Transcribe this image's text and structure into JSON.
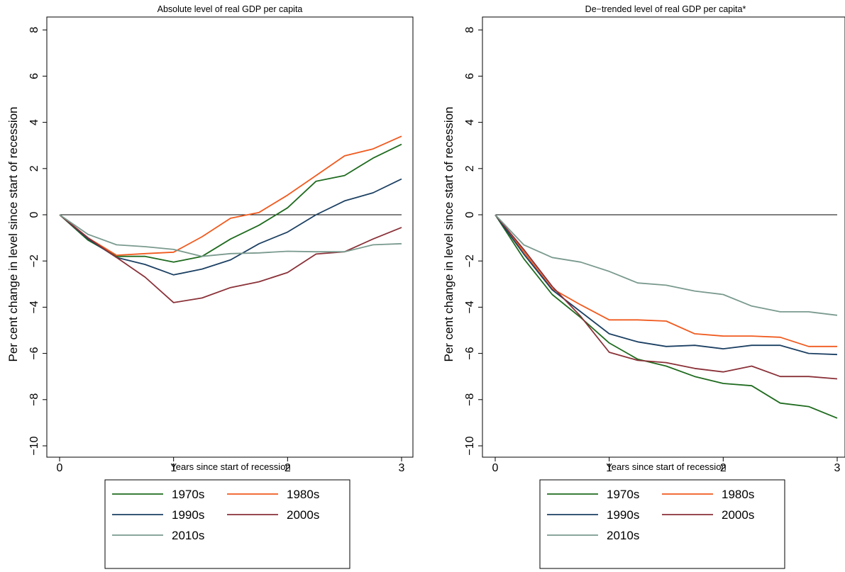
{
  "chart_data": [
    {
      "type": "line",
      "title": "Absolute level of real GDP per capita",
      "xlabel": "Years since start of recession",
      "ylabel": "Per cent change in level since start of recession",
      "x": [
        0,
        0.25,
        0.5,
        0.75,
        1,
        1.25,
        1.5,
        1.75,
        2,
        2.25,
        2.5,
        2.75,
        3
      ],
      "xlim": [
        0,
        3
      ],
      "ylim": [
        -10,
        8
      ],
      "xticks": [
        "0",
        "1",
        "2",
        "3"
      ],
      "yticks": [
        "−10",
        "−8",
        "−6",
        "−4",
        "−2",
        "0",
        "2",
        "4",
        "6",
        "8"
      ],
      "reference_line": 0,
      "grid": false,
      "legend": "below",
      "series": [
        {
          "name": "1970s",
          "color": "#1f6b1f",
          "values": [
            0,
            -1.1,
            -1.8,
            -1.8,
            -2.05,
            -1.8,
            -1.05,
            -0.45,
            0.3,
            1.45,
            1.7,
            2.45,
            3.05
          ]
        },
        {
          "name": "1980s",
          "color": "#f05a1e",
          "values": [
            0,
            -1.0,
            -1.75,
            -1.68,
            -1.62,
            -0.95,
            -0.15,
            0.1,
            0.85,
            1.7,
            2.55,
            2.85,
            3.4
          ]
        },
        {
          "name": "1990s",
          "color": "#1c4063",
          "values": [
            0,
            -1.05,
            -1.85,
            -2.15,
            -2.6,
            -2.35,
            -1.95,
            -1.25,
            -0.75,
            0.0,
            0.6,
            0.95,
            1.55
          ]
        },
        {
          "name": "2000s",
          "color": "#8a3138",
          "values": [
            0,
            -1.0,
            -1.85,
            -2.7,
            -3.8,
            -3.6,
            -3.15,
            -2.9,
            -2.5,
            -1.7,
            -1.6,
            -1.05,
            -0.55
          ]
        },
        {
          "name": "2010s",
          "color": "#7a9a8e",
          "values": [
            0,
            -0.85,
            -1.3,
            -1.38,
            -1.5,
            -1.8,
            -1.68,
            -1.65,
            -1.58,
            -1.6,
            -1.6,
            -1.3,
            -1.25
          ]
        }
      ]
    },
    {
      "type": "line",
      "title": "De−trended level of real GDP per capita*",
      "xlabel": "Years since start of recession",
      "ylabel": "Per cent change in level since start of recession",
      "x": [
        0,
        0.25,
        0.5,
        0.75,
        1,
        1.25,
        1.5,
        1.75,
        2,
        2.25,
        2.5,
        2.75,
        3
      ],
      "xlim": [
        0,
        3
      ],
      "ylim": [
        -10,
        8
      ],
      "xticks": [
        "0",
        "1",
        "2",
        "3"
      ],
      "yticks": [
        "−10",
        "−8",
        "−6",
        "−4",
        "−2",
        "0",
        "2",
        "4",
        "6",
        "8"
      ],
      "reference_line": 0,
      "grid": false,
      "legend": "below",
      "series": [
        {
          "name": "1970s",
          "color": "#1f6b1f",
          "values": [
            0,
            -1.9,
            -3.45,
            -4.45,
            -5.55,
            -6.25,
            -6.55,
            -7.0,
            -7.3,
            -7.4,
            -8.15,
            -8.3,
            -8.8
          ]
        },
        {
          "name": "1980s",
          "color": "#f05a1e",
          "values": [
            0,
            -1.6,
            -3.2,
            -3.9,
            -4.55,
            -4.55,
            -4.6,
            -5.15,
            -5.25,
            -5.25,
            -5.3,
            -5.7,
            -5.7
          ]
        },
        {
          "name": "1990s",
          "color": "#1c4063",
          "values": [
            0,
            -1.7,
            -3.25,
            -4.2,
            -5.15,
            -5.5,
            -5.7,
            -5.65,
            -5.8,
            -5.65,
            -5.65,
            -6.0,
            -6.05
          ]
        },
        {
          "name": "2000s",
          "color": "#8a3138",
          "values": [
            0,
            -1.5,
            -3.1,
            -4.4,
            -5.95,
            -6.3,
            -6.4,
            -6.65,
            -6.8,
            -6.55,
            -7.0,
            -7.0,
            -7.1
          ]
        },
        {
          "name": "2010s",
          "color": "#7a9a8e",
          "values": [
            0,
            -1.3,
            -1.85,
            -2.05,
            -2.45,
            -2.95,
            -3.05,
            -3.3,
            -3.45,
            -3.95,
            -4.2,
            -4.2,
            -4.35
          ]
        }
      ]
    }
  ]
}
